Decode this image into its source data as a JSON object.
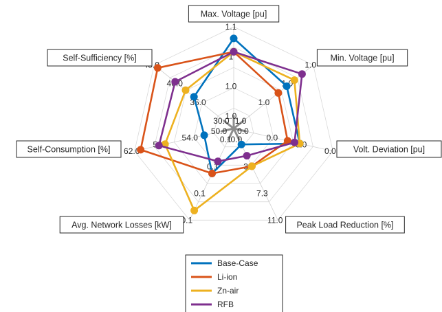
{
  "chart_data": {
    "type": "radar",
    "axes": [
      {
        "label": "Max. Voltage [pu]",
        "ticks": [
          "1.0",
          "1.0",
          "1",
          "1.1"
        ]
      },
      {
        "label": "Min. Voltage [pu]",
        "ticks": [
          "1.0",
          "1.0",
          "1.0",
          "1.0"
        ]
      },
      {
        "label": "Volt. Deviation [pu]",
        "ticks": [
          "0.0",
          "0.0",
          "0.0",
          "0.0"
        ]
      },
      {
        "label": "Peak Load Reduction [%]",
        "ticks": [
          "0.0",
          "3.7",
          "7.3",
          "11.0"
        ]
      },
      {
        "label": "Avg. Network Losses [kW]",
        "ticks": [
          "0.1",
          "0.1",
          "0.1",
          "0.1"
        ]
      },
      {
        "label": "Self-Consumption [%]",
        "ticks": [
          "50.0",
          "54.0",
          "58.0",
          "62.0"
        ]
      },
      {
        "label": "Self-Sufficiency [%]",
        "ticks": [
          "30.0",
          "35.0",
          "40.0",
          "45.0"
        ]
      }
    ],
    "rings": 4,
    "scale": [
      0,
      1
    ],
    "series": [
      {
        "name": "Base-Case",
        "color": "#0072BD",
        "values": [
          0.87,
          0.62,
          0.62,
          0.06,
          0.42,
          0.2,
          0.43
        ]
      },
      {
        "name": "Li-ion",
        "color": "#D95319",
        "values": [
          0.72,
          0.5,
          0.48,
          0.33,
          0.42,
          0.93,
          0.95
        ]
      },
      {
        "name": "Zn-air",
        "color": "#EDB120",
        "values": [
          0.72,
          0.73,
          0.62,
          0.33,
          0.88,
          0.65,
          0.55
        ]
      },
      {
        "name": "RFB",
        "color": "#7E2F8E",
        "values": [
          0.72,
          0.84,
          0.56,
          0.2,
          0.27,
          0.72,
          0.7
        ]
      }
    ],
    "legend_position": "bottom-center"
  }
}
